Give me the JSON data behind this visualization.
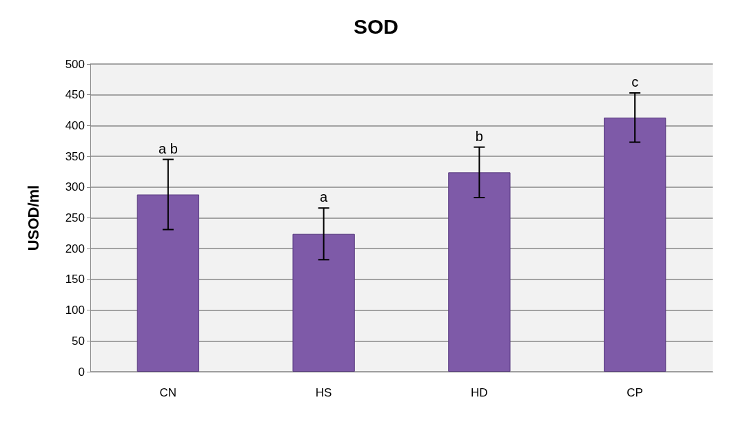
{
  "chart_data": {
    "type": "bar",
    "title": "SOD",
    "ylabel": "USOD/ml",
    "categories": [
      "CN",
      "HS",
      "HD",
      "CP"
    ],
    "values": [
      288,
      224,
      324,
      413
    ],
    "errors": [
      57,
      42,
      41,
      40
    ],
    "color": "#7e5aa8",
    "ylim": [
      0,
      500
    ],
    "yticks": [
      0,
      50,
      100,
      150,
      200,
      250,
      300,
      350,
      400,
      450,
      500
    ],
    "grid": "y",
    "annotations": [
      "a b",
      "a",
      "b",
      "c"
    ]
  }
}
